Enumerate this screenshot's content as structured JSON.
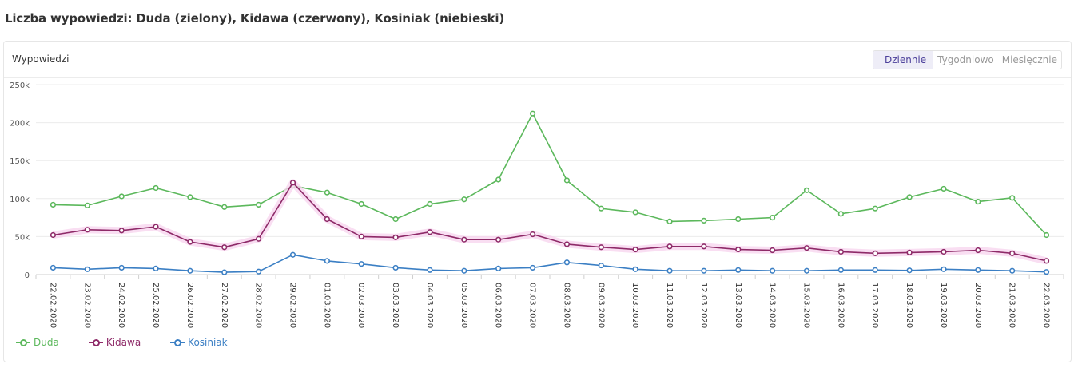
{
  "page": {
    "title": "Liczba wypowiedzi: Duda (zielony), Kidawa (czerwony), Kosiniak (niebieski)"
  },
  "card": {
    "title": "Wypowiedzi",
    "tabs": [
      {
        "label": "Dziennie",
        "active": true
      },
      {
        "label": "Tygodniowo",
        "active": false
      },
      {
        "label": "Miesięcznie",
        "active": false
      }
    ]
  },
  "chart_data": {
    "type": "line",
    "categories": [
      "22.02.2020",
      "23.02.2020",
      "24.02.2020",
      "25.02.2020",
      "26.02.2020",
      "27.02.2020",
      "28.02.2020",
      "29.02.2020",
      "01.03.2020",
      "02.03.2020",
      "03.03.2020",
      "04.03.2020",
      "05.03.2020",
      "06.03.2020",
      "07.03.2020",
      "08.03.2020",
      "09.03.2020",
      "10.03.2020",
      "11.03.2020",
      "12.03.2020",
      "13.03.2020",
      "14.03.2020",
      "15.03.2020",
      "16.03.2020",
      "17.03.2020",
      "18.03.2020",
      "19.03.2020",
      "20.03.2020",
      "21.03.2020",
      "22.03.2020"
    ],
    "ylim": [
      0,
      250000
    ],
    "yticks": [
      0,
      50000,
      100000,
      150000,
      200000,
      250000
    ],
    "ytick_labels": [
      "0",
      "50k",
      "100k",
      "150k",
      "200k",
      "250k"
    ],
    "grid": true,
    "legend": "bottom-left",
    "series": [
      {
        "name": "Duda",
        "color": "#5cb85c",
        "values": [
          92000,
          91000,
          103000,
          114000,
          102000,
          89000,
          92000,
          117000,
          108000,
          93000,
          73000,
          93000,
          99000,
          125000,
          212000,
          124000,
          87000,
          82000,
          70000,
          71000,
          73000,
          75000,
          111000,
          80000,
          87000,
          102000,
          113000,
          96000,
          101000,
          52000
        ]
      },
      {
        "name": "Kidawa",
        "color": "#8e2a68",
        "values": [
          52000,
          59000,
          58000,
          63000,
          43000,
          36000,
          47000,
          121000,
          73000,
          50000,
          49000,
          56000,
          46000,
          46000,
          53000,
          40000,
          36000,
          33000,
          37000,
          37000,
          33000,
          32000,
          35000,
          30000,
          28000,
          29000,
          30000,
          32000,
          28000,
          18000
        ]
      },
      {
        "name": "Kosiniak",
        "color": "#3b7fc4",
        "values": [
          9000,
          7000,
          9000,
          8000,
          5000,
          3000,
          4000,
          26000,
          18000,
          14000,
          9000,
          6000,
          5000,
          8000,
          9000,
          16000,
          12000,
          7000,
          5000,
          5000,
          6000,
          5000,
          5000,
          6000,
          6000,
          5500,
          7000,
          6000,
          5000,
          3500
        ]
      }
    ]
  }
}
